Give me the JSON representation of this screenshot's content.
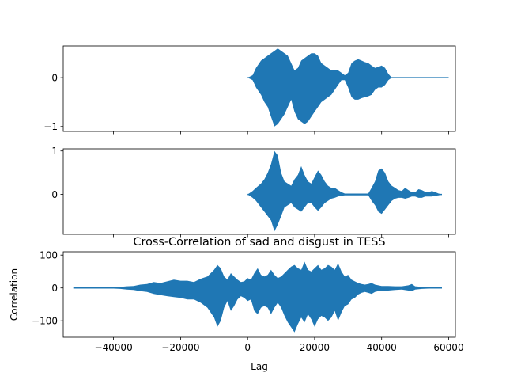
{
  "chart_data": [
    {
      "type": "line",
      "panel": "signal-sad",
      "title": "",
      "xlabel": "",
      "ylabel": "",
      "xlim": [
        -55000,
        62000
      ],
      "ylim": [
        -1.1,
        0.65
      ],
      "yticks": [
        0,
        -1
      ],
      "ytick_labels": [
        "0",
        "−1"
      ],
      "xtick_labels_visible": false,
      "series_color": "#1f77b4",
      "x": [
        0,
        1500,
        2500,
        4000,
        5000,
        6000,
        7000,
        8000,
        9000,
        10000,
        11000,
        12000,
        13000,
        14000,
        15000,
        16000,
        17000,
        18000,
        19000,
        20000,
        21000,
        22000,
        23000,
        24000,
        25000,
        26000,
        27000,
        28000,
        29000,
        30000,
        31000,
        32000,
        33000,
        34000,
        35000,
        36000,
        37000,
        38000,
        39000,
        40000,
        41000,
        42000,
        43000,
        44000,
        45000,
        46000,
        47000,
        48000,
        49000,
        50000,
        51000,
        52000,
        53000,
        54000,
        55000,
        56000,
        57000,
        58000,
        60000
      ],
      "upper": [
        0.0,
        0.05,
        0.2,
        0.35,
        0.4,
        0.45,
        0.5,
        0.55,
        0.6,
        0.55,
        0.5,
        0.45,
        0.3,
        0.15,
        0.2,
        0.35,
        0.4,
        0.45,
        0.5,
        0.5,
        0.45,
        0.3,
        0.25,
        0.2,
        0.15,
        0.15,
        0.15,
        0.1,
        0.05,
        0.1,
        0.3,
        0.35,
        0.38,
        0.35,
        0.32,
        0.3,
        0.25,
        0.2,
        0.22,
        0.25,
        0.2,
        0.08,
        0.0,
        0.0,
        0.0,
        0.0,
        0.0,
        0.0,
        0.0,
        0.0,
        0.0,
        0.0,
        0.0,
        0.0,
        0.0,
        0.0,
        0.0,
        0.0,
        0.0
      ],
      "lower": [
        0.0,
        -0.05,
        -0.2,
        -0.35,
        -0.5,
        -0.6,
        -0.8,
        -1.0,
        -0.95,
        -0.85,
        -0.75,
        -0.6,
        -0.45,
        -0.7,
        -0.85,
        -0.9,
        -0.95,
        -0.9,
        -0.8,
        -0.7,
        -0.6,
        -0.5,
        -0.45,
        -0.4,
        -0.35,
        -0.25,
        -0.15,
        -0.05,
        -0.05,
        -0.2,
        -0.4,
        -0.45,
        -0.45,
        -0.42,
        -0.4,
        -0.38,
        -0.35,
        -0.25,
        -0.2,
        -0.2,
        -0.15,
        -0.05,
        0.0,
        0.0,
        0.0,
        0.0,
        0.0,
        0.0,
        0.0,
        0.0,
        0.0,
        0.0,
        0.0,
        0.0,
        0.0,
        0.0,
        0.0,
        0.0,
        0.0
      ]
    },
    {
      "type": "line",
      "panel": "signal-disgust",
      "title": "",
      "xlabel": "",
      "ylabel": "",
      "xlim": [
        -55000,
        62000
      ],
      "ylim": [
        -0.92,
        1.05
      ],
      "yticks": [
        1,
        0
      ],
      "ytick_labels": [
        "1",
        "0"
      ],
      "xtick_labels_visible": false,
      "series_color": "#1f77b4",
      "x": [
        0,
        1500,
        2500,
        4000,
        5000,
        6000,
        7000,
        8000,
        9000,
        10000,
        11000,
        12000,
        13000,
        14000,
        15000,
        16000,
        17000,
        18000,
        19000,
        20000,
        21000,
        22000,
        23000,
        24000,
        25000,
        26000,
        27000,
        28000,
        29000,
        30000,
        31000,
        32000,
        33000,
        34000,
        35000,
        36000,
        37000,
        38000,
        39000,
        40000,
        41000,
        42000,
        43000,
        44000,
        45000,
        46000,
        47000,
        48000,
        49000,
        50000,
        51000,
        52000,
        53000,
        54000,
        55000,
        56000,
        57000,
        58000
      ],
      "upper": [
        0.0,
        0.08,
        0.15,
        0.25,
        0.35,
        0.5,
        0.7,
        1.0,
        0.9,
        0.5,
        0.3,
        0.25,
        0.2,
        0.35,
        0.45,
        0.65,
        0.45,
        0.3,
        0.25,
        0.4,
        0.55,
        0.45,
        0.3,
        0.2,
        0.15,
        0.15,
        0.1,
        0.05,
        0.02,
        0.02,
        0.02,
        0.02,
        0.02,
        0.02,
        0.02,
        0.02,
        0.15,
        0.3,
        0.55,
        0.6,
        0.5,
        0.3,
        0.2,
        0.15,
        0.1,
        0.08,
        0.15,
        0.1,
        0.05,
        0.05,
        0.12,
        0.1,
        0.06,
        0.05,
        0.08,
        0.05,
        0.02,
        0.0
      ],
      "lower": [
        0.0,
        -0.08,
        -0.15,
        -0.3,
        -0.4,
        -0.5,
        -0.6,
        -0.85,
        -0.7,
        -0.5,
        -0.3,
        -0.25,
        -0.2,
        -0.3,
        -0.35,
        -0.4,
        -0.3,
        -0.2,
        -0.2,
        -0.3,
        -0.38,
        -0.3,
        -0.2,
        -0.15,
        -0.1,
        -0.08,
        -0.05,
        -0.03,
        -0.02,
        -0.02,
        -0.02,
        -0.02,
        -0.02,
        -0.02,
        -0.02,
        -0.02,
        -0.15,
        -0.25,
        -0.4,
        -0.45,
        -0.35,
        -0.25,
        -0.15,
        -0.1,
        -0.08,
        -0.08,
        -0.1,
        -0.08,
        -0.05,
        -0.05,
        -0.08,
        -0.08,
        -0.05,
        -0.05,
        -0.05,
        -0.03,
        -0.02,
        0.0
      ]
    },
    {
      "type": "line",
      "panel": "cross-correlation",
      "title": "Cross-Correlation of sad and disgust in TESS",
      "xlabel": "Lag",
      "ylabel": "Correlation",
      "xlim": [
        -55000,
        62000
      ],
      "ylim": [
        -150,
        110
      ],
      "xticks": [
        -40000,
        -20000,
        0,
        20000,
        40000,
        60000
      ],
      "xtick_labels": [
        "−40000",
        "−20000",
        "0",
        "20000",
        "40000",
        "60000"
      ],
      "yticks": [
        100,
        0,
        -100
      ],
      "ytick_labels": [
        "100",
        "0",
        "−100"
      ],
      "series_color": "#1f77b4",
      "x": [
        -52000,
        -42000,
        -40000,
        -38000,
        -36000,
        -34000,
        -32000,
        -30000,
        -28000,
        -26000,
        -24000,
        -22000,
        -20000,
        -18000,
        -16000,
        -14000,
        -12000,
        -10000,
        -9000,
        -8000,
        -7000,
        -6000,
        -5000,
        -4000,
        -3000,
        -2000,
        -1000,
        0,
        1000,
        2000,
        3000,
        4000,
        5000,
        6000,
        7000,
        8000,
        9000,
        10000,
        11000,
        12000,
        13000,
        14000,
        15000,
        16000,
        17000,
        18000,
        19000,
        20000,
        21000,
        22000,
        23000,
        24000,
        25000,
        26000,
        27000,
        28000,
        29000,
        30000,
        31000,
        32000,
        33000,
        34000,
        35000,
        36000,
        37000,
        38000,
        39000,
        40000,
        42000,
        44000,
        46000,
        48000,
        49000,
        50000,
        52000,
        54000,
        56000,
        58000
      ],
      "upper": [
        0,
        0,
        2,
        3,
        5,
        6,
        10,
        12,
        18,
        15,
        20,
        25,
        22,
        22,
        18,
        28,
        35,
        55,
        70,
        60,
        35,
        25,
        45,
        35,
        25,
        18,
        20,
        30,
        25,
        45,
        60,
        40,
        35,
        40,
        55,
        40,
        30,
        35,
        45,
        55,
        65,
        70,
        60,
        55,
        80,
        55,
        50,
        60,
        70,
        55,
        60,
        70,
        65,
        55,
        75,
        50,
        35,
        40,
        25,
        20,
        15,
        12,
        10,
        12,
        15,
        10,
        8,
        6,
        6,
        5,
        5,
        8,
        12,
        5,
        3,
        2,
        1,
        0
      ],
      "lower": [
        0,
        0,
        -2,
        -3,
        -5,
        -6,
        -10,
        -12,
        -18,
        -22,
        -25,
        -28,
        -30,
        -35,
        -35,
        -45,
        -60,
        -90,
        -118,
        -100,
        -60,
        -40,
        -70,
        -55,
        -35,
        -25,
        -30,
        -40,
        -35,
        -70,
        -80,
        -60,
        -55,
        -60,
        -80,
        -60,
        -45,
        -60,
        -85,
        -105,
        -120,
        -135,
        -110,
        -90,
        -105,
        -80,
        -95,
        -118,
        -95,
        -85,
        -90,
        -100,
        -90,
        -70,
        -100,
        -75,
        -55,
        -50,
        -35,
        -30,
        -20,
        -15,
        -12,
        -15,
        -18,
        -12,
        -10,
        -8,
        -8,
        -6,
        -5,
        -8,
        -10,
        -5,
        -3,
        -2,
        -1,
        0
      ]
    }
  ]
}
